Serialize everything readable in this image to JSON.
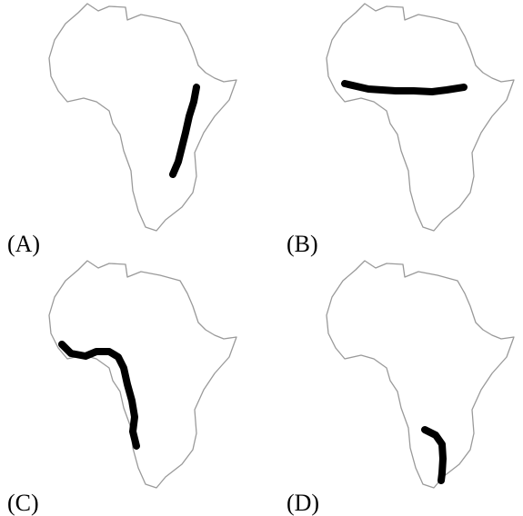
{
  "options": [
    {
      "id": "A",
      "label": "(A)"
    },
    {
      "id": "B",
      "label": "(B)"
    },
    {
      "id": "C",
      "label": "(C)"
    },
    {
      "id": "D",
      "label": "(D)"
    }
  ]
}
